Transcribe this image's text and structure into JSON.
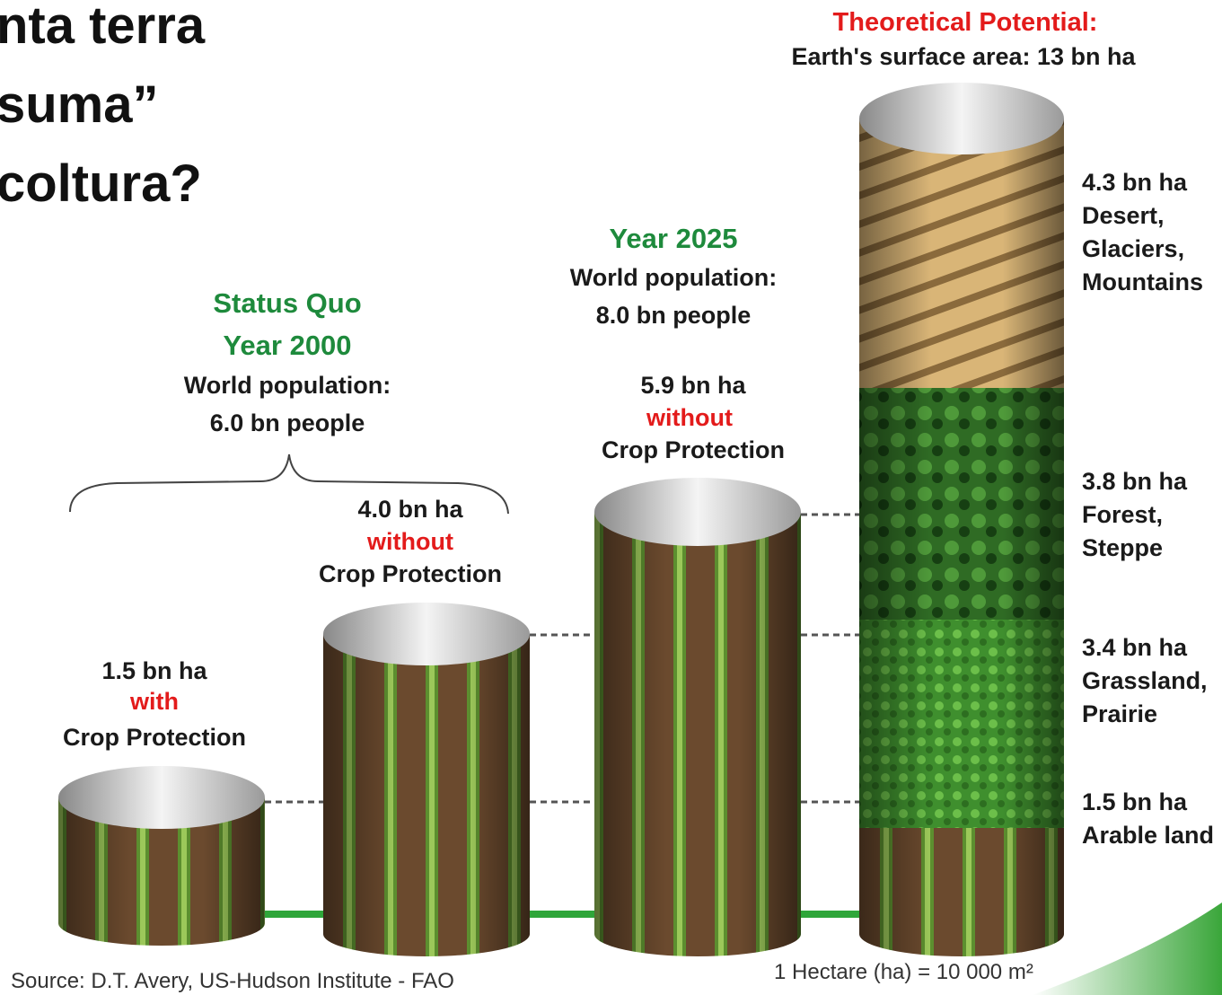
{
  "slide": {
    "title_lines": [
      "nta terra",
      "suma”",
      "coltura?"
    ]
  },
  "theoretical": {
    "heading": "Theoretical Potential:",
    "subheading": "Earth's surface area: 13 bn ha",
    "segments": [
      {
        "lines": [
          "4.3 bn ha",
          "Desert,",
          "Glaciers,",
          "Mountains"
        ]
      },
      {
        "lines": [
          "3.8 bn ha",
          "Forest,",
          "Steppe"
        ]
      },
      {
        "lines": [
          "3.4 bn ha",
          "Grassland,",
          "Prairie"
        ]
      },
      {
        "lines": [
          "1.5 bn ha",
          "Arable land"
        ]
      }
    ]
  },
  "year2000": {
    "lines": [
      "Status Quo",
      "Year 2000"
    ],
    "population_label": "World population:",
    "population": "6.0 bn people"
  },
  "year2025": {
    "heading": "Year  2025",
    "population_label": "World population:",
    "population": "8.0 bn people"
  },
  "cylinders": [
    {
      "area": "1.5 bn ha",
      "mode": "with",
      "label": "Crop Protection"
    },
    {
      "area": "4.0 bn ha",
      "mode": "without",
      "label": "Crop Protection"
    },
    {
      "area": "5.9 bn ha",
      "mode": "without",
      "label": "Crop Protection"
    }
  ],
  "footer": {
    "source": "Source: D.T. Avery, US-Hudson Institute - FAO",
    "unit_note": "1 Hectare (ha) = 10 000 m²"
  }
}
